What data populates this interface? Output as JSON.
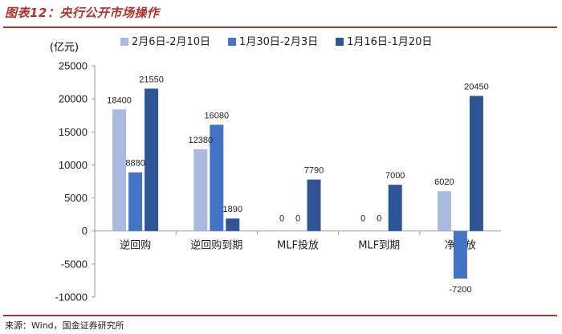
{
  "figure": {
    "title": "图表12：央行公开市场操作",
    "source": "来源：Wind，国金证券研究所"
  },
  "chart_data": {
    "type": "bar",
    "title": "",
    "ylabel": "(亿元)",
    "xlabel": "",
    "ylim": [
      -10000,
      25000
    ],
    "yticks": [
      -10000,
      -5000,
      0,
      5000,
      10000,
      15000,
      20000,
      25000
    ],
    "categories": [
      "逆回购",
      "逆回购到期",
      "MLF投放",
      "MLF到期",
      "净投放"
    ],
    "legend_position": "top",
    "grid": false,
    "series": [
      {
        "name": "2月6日-2月10日",
        "color": "#a9b9e0",
        "values": [
          18400,
          12380,
          0,
          0,
          6020
        ]
      },
      {
        "name": "1月30日-2月3日",
        "color": "#4472c4",
        "values": [
          8880,
          16080,
          0,
          0,
          -7200
        ]
      },
      {
        "name": "1月16日-1月20日",
        "color": "#2f5597",
        "values": [
          21550,
          1890,
          7790,
          7000,
          20450
        ]
      }
    ]
  }
}
